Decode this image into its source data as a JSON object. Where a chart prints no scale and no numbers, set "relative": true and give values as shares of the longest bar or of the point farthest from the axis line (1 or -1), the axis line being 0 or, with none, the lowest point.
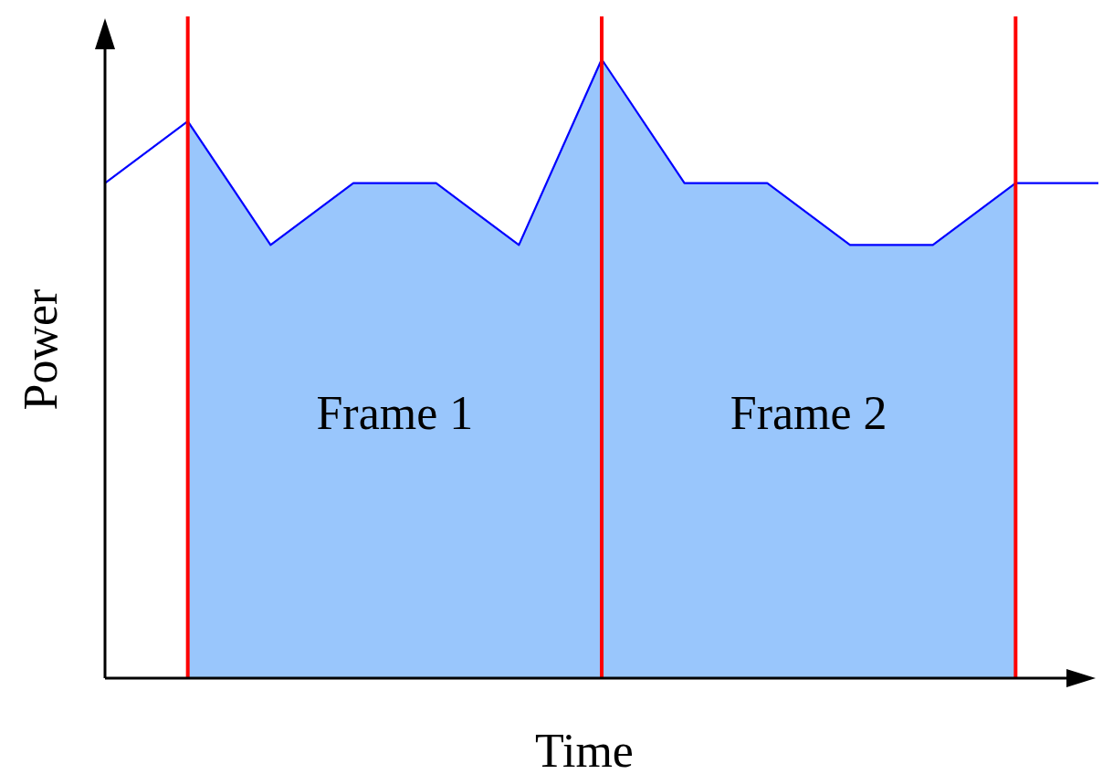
{
  "chart_data": {
    "type": "line",
    "relative": true,
    "xlabel": "Time",
    "ylabel": "Power",
    "categories": [
      null,
      null,
      null,
      null,
      null,
      null,
      null,
      null,
      null,
      null,
      null,
      null,
      null
    ],
    "grid": "x",
    "marker": "none",
    "line_style": "solid",
    "series": [
      {
        "type": "area",
        "color": "#99c6fc",
        "values": [
          null,
          0.9,
          0.7,
          0.8,
          0.8,
          0.7,
          1,
          null,
          null,
          null,
          null,
          null,
          null
        ]
      },
      {
        "type": "area",
        "color": "#99c6fc",
        "values": [
          null,
          null,
          null,
          null,
          null,
          null,
          1,
          0.8,
          0.8,
          0.7,
          0.7,
          0.8,
          null
        ]
      },
      {
        "color": "#0000ff",
        "values": [
          0.8,
          0.9,
          0.7,
          0.8,
          0.8,
          0.7,
          1,
          0.8,
          0.8,
          0.7,
          0.7,
          0.8,
          0.8
        ]
      }
    ],
    "annotations": [
      "Frame 1",
      "Frame 2"
    ]
  }
}
